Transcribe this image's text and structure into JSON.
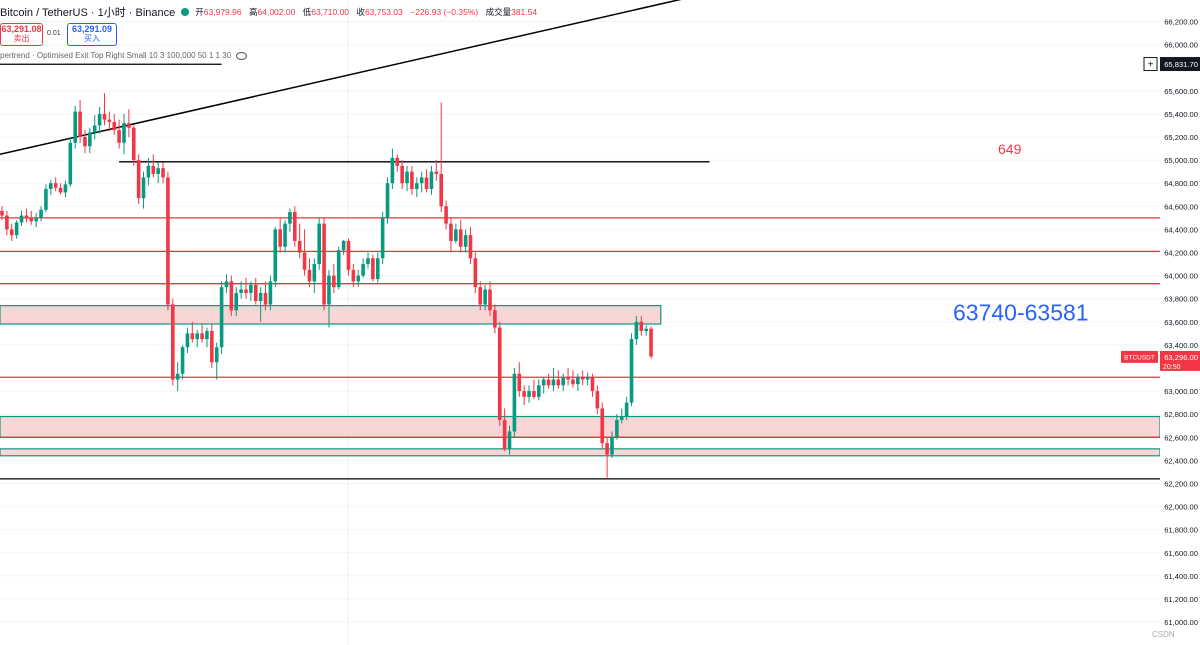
{
  "header": {
    "symbol": "Bitcoin / TetherUS · 1小时 · Binance",
    "open_label": "开",
    "open": "63,979.96",
    "high_label": "高",
    "high": "64,002.00",
    "low_label": "低",
    "low": "63,710.00",
    "close_label": "收",
    "close": "63,753.03",
    "change": "−226.93 (−0.35%)",
    "volume_label": "成交量",
    "volume": "381.54"
  },
  "trade": {
    "sell_price": "63,291.08",
    "sell_label": "卖出",
    "spread": "0.01",
    "buy_price": "63,291.09",
    "buy_label": "买入"
  },
  "indicator": {
    "label": "pertrend · Optimised Exit Top Right Small 10 3 100,000 50 1 1 30"
  },
  "watermark": "CSDN",
  "chart_data": {
    "type": "candlestick",
    "title": "Bitcoin / TetherUS · 1小时 · Binance",
    "ylim": [
      60950,
      66250
    ],
    "price_ticks": [
      {
        "label": "66,200.00",
        "value": 66200
      },
      {
        "label": "66,000.00",
        "value": 66000
      },
      {
        "label": "65,600.00",
        "value": 65600
      },
      {
        "label": "65,400.00",
        "value": 65400
      },
      {
        "label": "65,200.00",
        "value": 65200
      },
      {
        "label": "65,000.00",
        "value": 65000
      },
      {
        "label": "64,800.00",
        "value": 64800
      },
      {
        "label": "64,600.00",
        "value": 64600
      },
      {
        "label": "64,400.00",
        "value": 64400
      },
      {
        "label": "64,200.00",
        "value": 64200
      },
      {
        "label": "64,000.00",
        "value": 64000
      },
      {
        "label": "63,800.00",
        "value": 63800
      },
      {
        "label": "63,600.00",
        "value": 63600
      },
      {
        "label": "63,400.00",
        "value": 63400
      },
      {
        "label": "63,000.00",
        "value": 63000
      },
      {
        "label": "62,800.00",
        "value": 62800
      },
      {
        "label": "62,600.00",
        "value": 62600
      },
      {
        "label": "62,400.00",
        "value": 62400
      },
      {
        "label": "62,200.00",
        "value": 62200
      },
      {
        "label": "62,000.00",
        "value": 62000
      },
      {
        "label": "61,800.00",
        "value": 61800
      },
      {
        "label": "61,600.00",
        "value": 61600
      },
      {
        "label": "61,400.00",
        "value": 61400
      },
      {
        "label": "61,200.00",
        "value": 61200
      },
      {
        "label": "61,000.00",
        "value": 61000
      }
    ],
    "price_badges": [
      {
        "label": "65,831.70",
        "value": 65831.7,
        "color": "#131722",
        "text_color": "#ffffff"
      },
      {
        "label": "63,296.00",
        "subtitle": "20:50",
        "value": 63296,
        "color": "#f23645",
        "text_color": "#ffffff",
        "ticker": "BTCUSDT"
      }
    ],
    "annotations": [
      {
        "text": "649",
        "price": 65000,
        "color": "#f23645"
      },
      {
        "text": "63740-63581",
        "price": 63700,
        "color": "#2962ff"
      }
    ],
    "lines": [
      {
        "price": 65830,
        "color": "#000000",
        "from_bar": 0,
        "to_bar": 45
      },
      {
        "price": 64985,
        "color": "#000000",
        "from_bar": 24,
        "to_bar": 145
      },
      {
        "price": 64500,
        "color": "#e03a3e",
        "from_bar": 0,
        "to_bar": 171
      },
      {
        "price": 64210,
        "color": "#e03a3e",
        "from_bar": 0,
        "to_bar": 171
      },
      {
        "price": 63930,
        "color": "#e03a3e",
        "from_bar": 0,
        "to_bar": 171
      },
      {
        "price": 63120,
        "color": "#e03a3e",
        "from_bar": 0,
        "to_bar": 171
      },
      {
        "price": 62600,
        "color": "#e03a3e",
        "from_bar": 0,
        "to_bar": 171
      },
      {
        "price": 62240,
        "color": "#000000",
        "from_bar": 0,
        "to_bar": 171
      }
    ],
    "zones": [
      {
        "top": 63740,
        "bottom": 63581,
        "border": "#089981",
        "fill": "#f9d5d6",
        "to_bar": 135
      },
      {
        "top": 62780,
        "bottom": 62600,
        "border": "#089981",
        "fill": "#f9d5d6",
        "to_bar": 171
      },
      {
        "top": 62500,
        "bottom": 62440,
        "border": "#089981",
        "fill": "#f9d5d6",
        "to_bar": 171
      }
    ],
    "trendline": {
      "from": {
        "bar": 0,
        "price": 65050
      },
      "to": {
        "bar": 98,
        "price": 66410
      },
      "color": "#000000"
    },
    "candles": [
      [
        64560,
        64600,
        64480,
        64520
      ],
      [
        64520,
        64560,
        64350,
        64400
      ],
      [
        64400,
        64450,
        64300,
        64350
      ],
      [
        64350,
        64480,
        64320,
        64460
      ],
      [
        64460,
        64560,
        64430,
        64520
      ],
      [
        64520,
        64580,
        64460,
        64500
      ],
      [
        64500,
        64560,
        64440,
        64470
      ],
      [
        64470,
        64540,
        64420,
        64500
      ],
      [
        64500,
        64600,
        64470,
        64570
      ],
      [
        64570,
        64790,
        64550,
        64750
      ],
      [
        64750,
        64830,
        64700,
        64800
      ],
      [
        64800,
        64850,
        64730,
        64760
      ],
      [
        64760,
        64800,
        64700,
        64720
      ],
      [
        64720,
        64820,
        64680,
        64790
      ],
      [
        64790,
        65200,
        64770,
        65150
      ],
      [
        65150,
        65470,
        65100,
        65420
      ],
      [
        65420,
        65520,
        65150,
        65200
      ],
      [
        65200,
        65260,
        65060,
        65120
      ],
      [
        65120,
        65280,
        65060,
        65240
      ],
      [
        65240,
        65390,
        65180,
        65300
      ],
      [
        65300,
        65460,
        65230,
        65400
      ],
      [
        65400,
        65580,
        65300,
        65350
      ],
      [
        65350,
        65420,
        65250,
        65330
      ],
      [
        65330,
        65400,
        65220,
        65260
      ],
      [
        65260,
        65350,
        65100,
        65150
      ],
      [
        65150,
        65400,
        65050,
        65320
      ],
      [
        65320,
        65440,
        65200,
        65280
      ],
      [
        65280,
        65300,
        64950,
        65000
      ],
      [
        65000,
        65050,
        64620,
        64670
      ],
      [
        64670,
        64900,
        64580,
        64850
      ],
      [
        64850,
        65020,
        64780,
        64950
      ],
      [
        64950,
        65050,
        64850,
        64880
      ],
      [
        64880,
        64980,
        64800,
        64930
      ],
      [
        64930,
        64980,
        64800,
        64850
      ],
      [
        64850,
        64900,
        63700,
        63750
      ],
      [
        63750,
        63800,
        63050,
        63100
      ],
      [
        63100,
        63250,
        63000,
        63150
      ],
      [
        63150,
        63400,
        63100,
        63380
      ],
      [
        63380,
        63550,
        63330,
        63500
      ],
      [
        63500,
        63600,
        63420,
        63450
      ],
      [
        63450,
        63530,
        63380,
        63500
      ],
      [
        63500,
        63580,
        63420,
        63450
      ],
      [
        63450,
        63550,
        63380,
        63520
      ],
      [
        63520,
        63580,
        63200,
        63250
      ],
      [
        63250,
        63420,
        63100,
        63380
      ],
      [
        63380,
        63950,
        63320,
        63900
      ],
      [
        63900,
        64010,
        63850,
        63950
      ],
      [
        63950,
        64000,
        63650,
        63700
      ],
      [
        63700,
        63900,
        63650,
        63850
      ],
      [
        63850,
        63950,
        63800,
        63880
      ],
      [
        63880,
        63980,
        63800,
        63850
      ],
      [
        63850,
        63950,
        63780,
        63920
      ],
      [
        63920,
        63980,
        63750,
        63780
      ],
      [
        63780,
        63900,
        63600,
        63850
      ],
      [
        63850,
        63950,
        63700,
        63750
      ],
      [
        63750,
        64000,
        63700,
        63950
      ],
      [
        63950,
        64420,
        63900,
        64400
      ],
      [
        64400,
        64500,
        64200,
        64250
      ],
      [
        64250,
        64480,
        64200,
        64450
      ],
      [
        64450,
        64580,
        64380,
        64550
      ],
      [
        64550,
        64600,
        64250,
        64300
      ],
      [
        64300,
        64450,
        64150,
        64200
      ],
      [
        64200,
        64400,
        64000,
        64050
      ],
      [
        64050,
        64150,
        63900,
        63950
      ],
      [
        63950,
        64150,
        63850,
        64100
      ],
      [
        64100,
        64500,
        64050,
        64450
      ],
      [
        64450,
        64500,
        63700,
        63750
      ],
      [
        63750,
        64050,
        63550,
        64000
      ],
      [
        64000,
        64100,
        63850,
        63900
      ],
      [
        63900,
        64250,
        63880,
        64220
      ],
      [
        64220,
        64310,
        64180,
        64300
      ],
      [
        64300,
        64320,
        64000,
        64050
      ],
      [
        64050,
        64100,
        63900,
        63950
      ],
      [
        63950,
        64050,
        63900,
        64000
      ],
      [
        64000,
        64150,
        63980,
        64100
      ],
      [
        64100,
        64200,
        64060,
        64150
      ],
      [
        64150,
        64180,
        63950,
        63970
      ],
      [
        63970,
        64200,
        63940,
        64150
      ],
      [
        64150,
        64550,
        64100,
        64500
      ],
      [
        64500,
        64850,
        64450,
        64800
      ],
      [
        64800,
        65100,
        64750,
        65020
      ],
      [
        65020,
        65050,
        64900,
        64950
      ],
      [
        64950,
        65000,
        64750,
        64800
      ],
      [
        64800,
        64950,
        64730,
        64900
      ],
      [
        64900,
        64950,
        64700,
        64750
      ],
      [
        64750,
        64850,
        64680,
        64800
      ],
      [
        64800,
        64900,
        64720,
        64850
      ],
      [
        64850,
        64920,
        64720,
        64750
      ],
      [
        64750,
        64950,
        64700,
        64900
      ],
      [
        64900,
        65000,
        64820,
        64880
      ],
      [
        64880,
        65500,
        64550,
        64600
      ],
      [
        64600,
        64650,
        64400,
        64450
      ],
      [
        64450,
        64500,
        64200,
        64300
      ],
      [
        64300,
        64450,
        64280,
        64400
      ],
      [
        64400,
        64480,
        64200,
        64250
      ],
      [
        64250,
        64400,
        64200,
        64350
      ],
      [
        64350,
        64420,
        64100,
        64150
      ],
      [
        64150,
        64200,
        63850,
        63900
      ],
      [
        63900,
        63950,
        63700,
        63750
      ],
      [
        63750,
        63920,
        63700,
        63880
      ],
      [
        63880,
        63950,
        63650,
        63700
      ],
      [
        63700,
        63750,
        63500,
        63550
      ],
      [
        63550,
        63600,
        62700,
        62750
      ],
      [
        62750,
        62850,
        62480,
        62500
      ],
      [
        62500,
        62700,
        62450,
        62650
      ],
      [
        62650,
        63200,
        62600,
        63150
      ],
      [
        63150,
        63250,
        62950,
        63000
      ],
      [
        63000,
        63050,
        62880,
        62950
      ],
      [
        62950,
        63050,
        62900,
        63000
      ],
      [
        63000,
        63100,
        62930,
        62950
      ],
      [
        62950,
        63100,
        62920,
        63050
      ],
      [
        63050,
        63120,
        62980,
        63100
      ],
      [
        63100,
        63150,
        63020,
        63050
      ],
      [
        63050,
        63200,
        63000,
        63100
      ],
      [
        63100,
        63180,
        63020,
        63050
      ],
      [
        63050,
        63150,
        63000,
        63120
      ],
      [
        63120,
        63200,
        63050,
        63100
      ],
      [
        63100,
        63180,
        63030,
        63060
      ],
      [
        63060,
        63150,
        63000,
        63120
      ],
      [
        63120,
        63180,
        63050,
        63100
      ],
      [
        63100,
        63160,
        63050,
        63120
      ],
      [
        63120,
        63150,
        62950,
        63000
      ],
      [
        63000,
        63050,
        62800,
        62850
      ],
      [
        62850,
        62900,
        62500,
        62550
      ],
      [
        62550,
        62600,
        62250,
        62450
      ],
      [
        62450,
        62650,
        62420,
        62600
      ],
      [
        62600,
        62800,
        62580,
        62750
      ],
      [
        62750,
        62850,
        62720,
        62780
      ],
      [
        62780,
        62950,
        62750,
        62900
      ],
      [
        62900,
        63500,
        62870,
        63450
      ],
      [
        63450,
        63650,
        63400,
        63600
      ],
      [
        63600,
        63650,
        63480,
        63520
      ],
      [
        63520,
        63570,
        63480,
        63540
      ],
      [
        63540,
        63560,
        63280,
        63300
      ]
    ]
  }
}
